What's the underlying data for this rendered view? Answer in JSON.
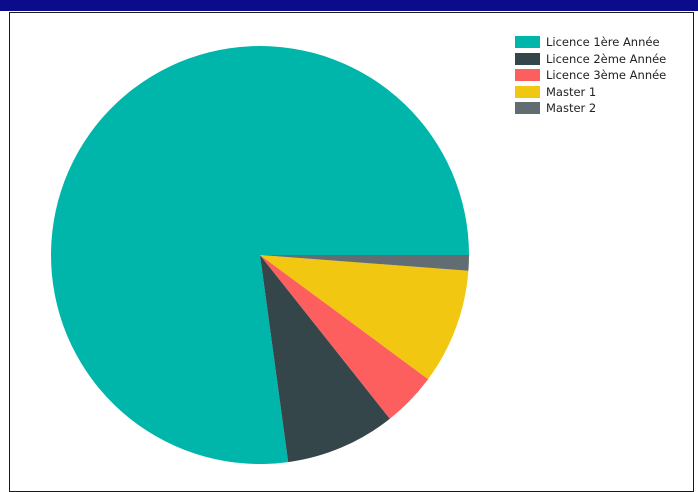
{
  "chart_data": {
    "type": "pie",
    "series": [
      {
        "values": [
          {
            "label": "Licence 1ère Année",
            "value": 77.0,
            "color": "#00b5a9"
          },
          {
            "label": "Licence 2ème Année",
            "value": 8.5,
            "color": "#35464b"
          },
          {
            "label": "Licence 3ème Année",
            "value": 4.2,
            "color": "#fc5f5e"
          },
          {
            "label": "Master 1",
            "value": 8.9,
            "color": "#f2c711"
          },
          {
            "label": "Master 2",
            "value": 1.2,
            "color": "#616d72"
          }
        ]
      }
    ],
    "legend_position": "top-right",
    "start": "3 o'clock, counter-clockwise"
  }
}
